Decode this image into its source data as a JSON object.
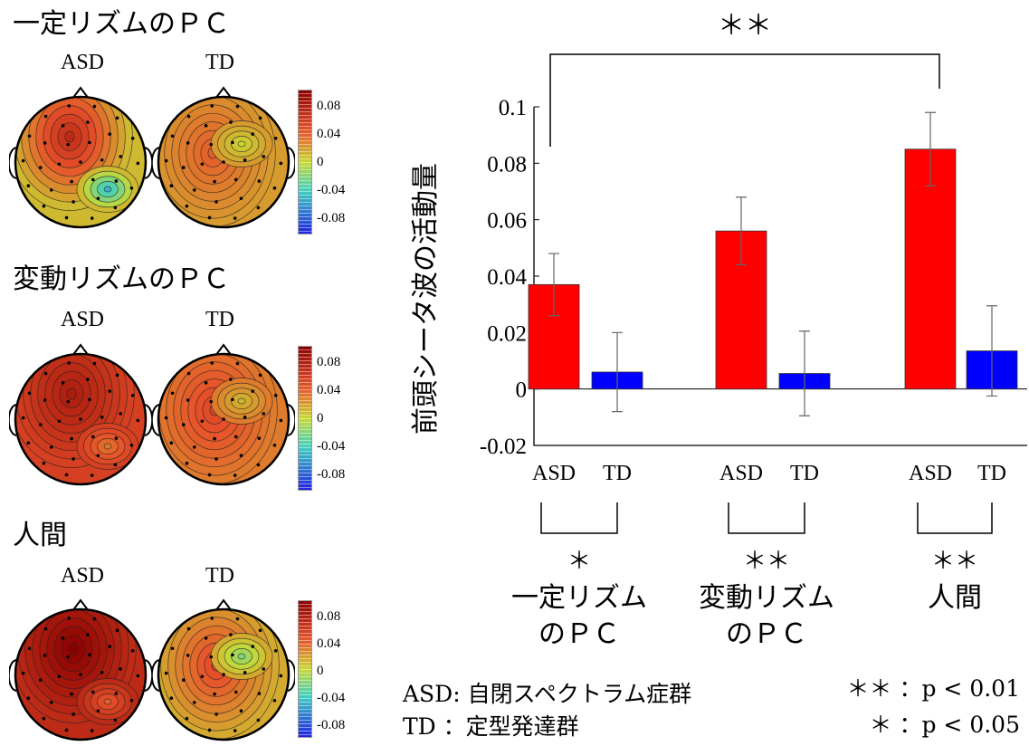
{
  "topomaps": {
    "groups": [
      "ASD",
      "TD"
    ],
    "colorbar_ticks": [
      "0.08",
      "0.04",
      "0",
      "-0.04",
      "-0.08"
    ],
    "colorbar_range": [
      -0.1,
      0.1
    ],
    "colors": {
      "high": "#8b0000",
      "mid_high": "#e8502a",
      "mid": "#c8d832",
      "mid_low": "#40d0c0",
      "low": "#2020e0"
    },
    "sections": [
      {
        "title": "一定リズムのＰＣ",
        "maps": [
          {
            "group": "ASD",
            "peak_level": 0.07,
            "trough_level": -0.05
          },
          {
            "group": "TD",
            "peak_level": 0.04,
            "trough_level": 0.0
          }
        ]
      },
      {
        "title": "変動リズムのＰＣ",
        "maps": [
          {
            "group": "ASD",
            "peak_level": 0.08,
            "trough_level": 0.03
          },
          {
            "group": "TD",
            "peak_level": 0.05,
            "trough_level": 0.01
          }
        ]
      },
      {
        "title": "人間",
        "maps": [
          {
            "group": "ASD",
            "peak_level": 0.1,
            "trough_level": 0.04
          },
          {
            "group": "TD",
            "peak_level": 0.05,
            "trough_level": -0.02
          }
        ]
      }
    ]
  },
  "chart_data": {
    "type": "bar",
    "ylabel": "前頭シータ波の活動量",
    "ylim": [
      -0.02,
      0.1
    ],
    "yticks": [
      -0.02,
      0,
      0.02,
      0.04,
      0.06,
      0.08,
      0.1
    ],
    "ytick_labels": [
      "-0.02",
      "0",
      "0.02",
      "0.04",
      "0.06",
      "0.08",
      "0.1"
    ],
    "grid": false,
    "colors": {
      "ASD": "#ff0000",
      "TD": "#0000ff"
    },
    "categories": [
      "一定リズムのＰＣ",
      "変動リズムのＰＣ",
      "人間"
    ],
    "category_lines": [
      [
        "一定リズム",
        "のＰＣ"
      ],
      [
        "変動リズム",
        "のＰＣ"
      ],
      [
        "人間"
      ]
    ],
    "group_labels": [
      "ASD",
      "TD"
    ],
    "bars": [
      {
        "group": "ASD",
        "value": 0.037,
        "error": 0.011
      },
      {
        "group": "TD",
        "value": 0.006,
        "error": 0.014
      },
      {
        "group": "ASD",
        "value": 0.056,
        "error": 0.012
      },
      {
        "group": "TD",
        "value": 0.0055,
        "error": 0.015
      },
      {
        "group": "ASD",
        "value": 0.085,
        "error": 0.013
      },
      {
        "group": "TD",
        "value": 0.0135,
        "error": 0.016
      }
    ],
    "within_significance": [
      "＊",
      "＊＊",
      "＊＊"
    ],
    "top_significance": "＊＊"
  },
  "legend": {
    "abbr": [
      {
        "label": "ASD: 自閉スペクトラム症群"
      },
      {
        "label": "TD ：定型発達群"
      }
    ],
    "significance": [
      {
        "label": "＊＊ ：p < 0.01"
      },
      {
        "label": "＊ ：p < 0.05"
      }
    ]
  }
}
